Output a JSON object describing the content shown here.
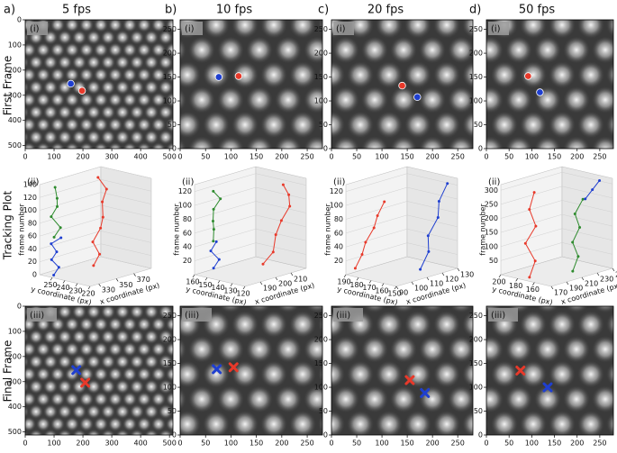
{
  "figure": {
    "columns": [
      {
        "letter": "a)",
        "title": "5 fps"
      },
      {
        "letter": "b)",
        "title": "10 fps"
      },
      {
        "letter": "c)",
        "title": "20 fps"
      },
      {
        "letter": "d)",
        "title": "50 fps"
      }
    ],
    "row_labels": [
      "First Frame",
      "Tracking Plot",
      "Final Frame"
    ],
    "first_frame": [
      {
        "label": "(i)",
        "xlim": [
          0,
          512
        ],
        "ylim": [
          512,
          0
        ],
        "xticks": [
          0,
          100,
          200,
          300,
          400,
          500
        ],
        "yticks": [
          0,
          100,
          200,
          300,
          400,
          500
        ],
        "markers": [
          {
            "shape": "circle",
            "color": "#1f3fd0",
            "x": 158,
            "y": 254
          },
          {
            "shape": "circle",
            "color": "#e8392a",
            "x": 197,
            "y": 282
          }
        ]
      },
      {
        "label": "(i)",
        "xlim": [
          0,
          280
        ],
        "ylim": [
          0,
          270
        ],
        "xticks": [
          0,
          50,
          100,
          150,
          200,
          250
        ],
        "yticks": [
          0,
          50,
          100,
          150,
          200,
          250
        ],
        "markers": [
          {
            "shape": "circle",
            "color": "#1f3fd0",
            "x": 76,
            "y": 150
          },
          {
            "shape": "circle",
            "color": "#e8392a",
            "x": 115,
            "y": 152
          }
        ]
      },
      {
        "label": "(i)",
        "xlim": [
          0,
          280
        ],
        "ylim": [
          0,
          270
        ],
        "xticks": [
          0,
          50,
          100,
          150,
          200,
          250
        ],
        "yticks": [
          0,
          50,
          100,
          150,
          200,
          250
        ],
        "markers": [
          {
            "shape": "circle",
            "color": "#e8392a",
            "x": 140,
            "y": 132
          },
          {
            "shape": "circle",
            "color": "#1f3fd0",
            "x": 170,
            "y": 108
          }
        ]
      },
      {
        "label": "(i)",
        "xlim": [
          0,
          280
        ],
        "ylim": [
          0,
          270
        ],
        "xticks": [
          0,
          50,
          100,
          150,
          200,
          250
        ],
        "yticks": [
          0,
          50,
          100,
          150,
          200,
          250
        ],
        "markers": [
          {
            "shape": "circle",
            "color": "#e8392a",
            "x": 92,
            "y": 152
          },
          {
            "shape": "circle",
            "color": "#1f3fd0",
            "x": 118,
            "y": 118
          }
        ]
      }
    ],
    "tracking": [
      {
        "label": "(ii)",
        "xlabel": "x coordinate (px)",
        "ylabel": "y coordinate (px)",
        "zlabel": "frame number",
        "xlim": [
          320,
          390
        ],
        "ylim": [
          220,
          260
        ],
        "zlim": [
          0,
          140
        ],
        "xticks": [
          330,
          350,
          370
        ],
        "yticks": [
          220,
          230,
          240,
          250
        ],
        "zticks": [
          0,
          20,
          40,
          60,
          80,
          100,
          120,
          140
        ],
        "series": [
          {
            "color": "#e8392a",
            "x": [
              360,
              364,
              362,
              368,
              365,
              370,
              372,
              368
            ],
            "y": [
              245,
              243,
              247,
              245,
              241,
              245,
              243,
              247
            ],
            "z": [
              5,
              22,
              40,
              60,
              80,
              100,
              120,
              138
            ]
          },
          {
            "color": "#2e8b2e",
            "x": [
              325,
              328,
              326,
              330,
              327,
              329
            ],
            "y": [
              252,
              249,
              255,
              253,
              251,
              254
            ],
            "z": [
              60,
              75,
              90,
              105,
              120,
              135
            ]
          },
          {
            "color": "#1f3fd0",
            "x": [
              326,
              329,
              325,
              328,
              326,
              330
            ],
            "y": [
              253,
              251,
              254,
              252,
              255,
              250
            ],
            "z": [
              0,
              12,
              24,
              36,
              48,
              58
            ]
          }
        ]
      },
      {
        "label": "(ii)",
        "xlabel": "x coordinate (px)",
        "ylabel": "y coordinate (px)",
        "zlabel": "frame number",
        "xlim": [
          180,
          220
        ],
        "ylim": [
          120,
          160
        ],
        "zlim": [
          0,
          130
        ],
        "xticks": [
          190,
          200,
          210
        ],
        "yticks": [
          120,
          130,
          140,
          150,
          160
        ],
        "zticks": [
          20,
          40,
          60,
          80,
          100,
          120
        ],
        "series": [
          {
            "color": "#e8392a",
            "x": [
              200,
              205,
              210,
              212,
              215,
              216,
              214
            ],
            "y": [
              130,
              128,
              132,
              130,
              127,
              129,
              131
            ],
            "z": [
              15,
              30,
              50,
              70,
              90,
              105,
              120
            ]
          },
          {
            "color": "#2e8b2e",
            "x": [
              184,
              186,
              183,
              185,
              187,
              184
            ],
            "y": [
              150,
              152,
              149,
              151,
              148,
              150
            ],
            "z": [
              50,
              65,
              80,
              95,
              110,
              122
            ]
          },
          {
            "color": "#1f3fd0",
            "x": [
              185,
              187,
              184,
              186
            ],
            "y": [
              151,
              149,
              152,
              150
            ],
            "z": [
              10,
              22,
              35,
              48
            ]
          }
        ]
      },
      {
        "label": "(ii)",
        "xlabel": "x coordinate (px)",
        "ylabel": "y coordinate (px)",
        "zlabel": "frame number",
        "xlim": [
          90,
          130
        ],
        "ylim": [
          150,
          190
        ],
        "zlim": [
          0,
          130
        ],
        "xticks": [
          90,
          100,
          110,
          120,
          130
        ],
        "yticks": [
          150,
          160,
          170,
          180,
          190
        ],
        "zticks": [
          20,
          40,
          60,
          80,
          100,
          120
        ],
        "series": [
          {
            "color": "#e8392a",
            "x": [
              92,
              94,
              93,
              96,
              95,
              97
            ],
            "y": [
              185,
              182,
              178,
              175,
              171,
              168
            ],
            "z": [
              10,
              30,
              50,
              70,
              90,
              110
            ]
          },
          {
            "color": "#1f3fd0",
            "x": [
              118,
              121,
              119,
              123,
              122,
              125
            ],
            "y": [
              165,
              162,
              160,
              157,
              155,
              152
            ],
            "z": [
              0,
              25,
              50,
              75,
              100,
              125
            ]
          }
        ]
      },
      {
        "label": "(ii)",
        "xlabel": "x coordinate (px)",
        "ylabel": "y coordinate (px)",
        "zlabel": "frame number",
        "xlim": [
          170,
          250
        ],
        "ylim": [
          140,
          200
        ],
        "zlim": [
          0,
          320
        ],
        "xticks": [
          170,
          190,
          210,
          230,
          250
        ],
        "yticks": [
          160,
          180,
          200
        ],
        "zticks": [
          50,
          100,
          150,
          200,
          250,
          300
        ],
        "series": [
          {
            "color": "#e8392a",
            "x": [
              180,
              182,
              178,
              185,
              181,
              184
            ],
            "y": [
              175,
              170,
              178,
              172,
              176,
              173
            ],
            "z": [
              0,
              60,
              120,
              180,
              240,
              300
            ]
          },
          {
            "color": "#2e8b2e",
            "x": [
              220,
              225,
              222,
              228,
              224,
              230
            ],
            "y": [
              160,
              158,
              162,
              159,
              161,
              157
            ],
            "z": [
              0,
              50,
              100,
              150,
              200,
              250
            ]
          },
          {
            "color": "#1f3fd0",
            "x": [
              232,
              238,
              244
            ],
            "y": [
              156,
              153,
              150
            ],
            "z": [
              250,
              280,
              310
            ]
          }
        ]
      }
    ],
    "final_frame": [
      {
        "label": "(iii)",
        "xlim": [
          0,
          512
        ],
        "ylim": [
          512,
          0
        ],
        "xticks": [
          0,
          100,
          200,
          300,
          400,
          500
        ],
        "yticks": [
          0,
          100,
          200,
          300,
          400,
          500
        ],
        "markers": [
          {
            "shape": "x",
            "color": "#1f3fd0",
            "x": 177,
            "y": 254
          },
          {
            "shape": "x",
            "color": "#e8392a",
            "x": 208,
            "y": 304
          }
        ]
      },
      {
        "label": "(iii)",
        "xlim": [
          0,
          280
        ],
        "ylim": [
          0,
          270
        ],
        "xticks": [
          0,
          50,
          100,
          150,
          200,
          250
        ],
        "yticks": [
          0,
          50,
          100,
          150,
          200,
          250
        ],
        "markers": [
          {
            "shape": "x",
            "color": "#1f3fd0",
            "x": 72,
            "y": 138
          },
          {
            "shape": "x",
            "color": "#e8392a",
            "x": 105,
            "y": 142
          }
        ]
      },
      {
        "label": "(iii)",
        "xlim": [
          0,
          280
        ],
        "ylim": [
          0,
          270
        ],
        "xticks": [
          0,
          50,
          100,
          150,
          200,
          250
        ],
        "yticks": [
          0,
          50,
          100,
          150,
          200,
          250
        ],
        "markers": [
          {
            "shape": "x",
            "color": "#e8392a",
            "x": 155,
            "y": 115
          },
          {
            "shape": "x",
            "color": "#1f3fd0",
            "x": 185,
            "y": 88
          }
        ]
      },
      {
        "label": "(iii)",
        "xlim": [
          0,
          280
        ],
        "ylim": [
          0,
          270
        ],
        "xticks": [
          0,
          50,
          100,
          150,
          200,
          250
        ],
        "yticks": [
          0,
          50,
          100,
          150,
          200,
          250
        ],
        "markers": [
          {
            "shape": "x",
            "color": "#e8392a",
            "x": 75,
            "y": 135
          },
          {
            "shape": "x",
            "color": "#1f3fd0",
            "x": 135,
            "y": 100
          }
        ]
      }
    ]
  }
}
